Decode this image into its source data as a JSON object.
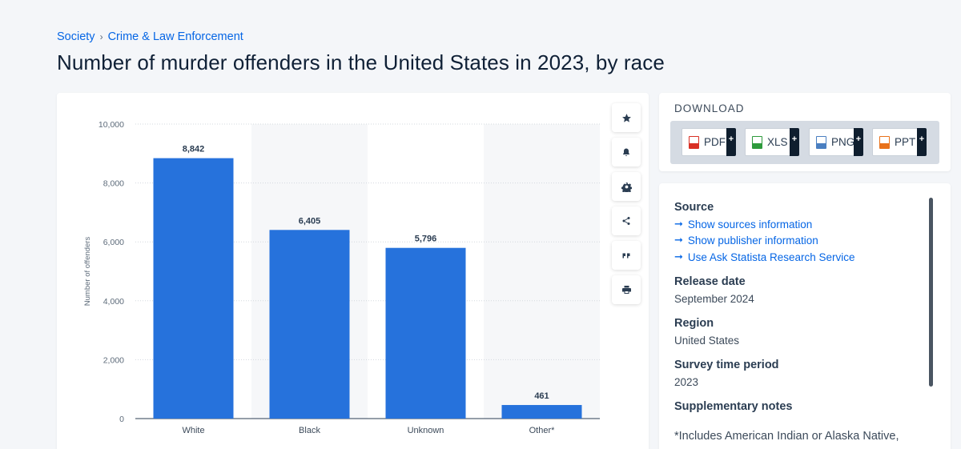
{
  "breadcrumb": {
    "items": [
      "Society",
      "Crime & Law Enforcement"
    ],
    "separator": "›"
  },
  "title": "Number of murder offenders in the United States in 2023, by race",
  "toolbar": {
    "buttons": [
      {
        "name": "favorite-button",
        "icon": "star-icon",
        "glyph": "★"
      },
      {
        "name": "notification-button",
        "icon": "bell-icon",
        "glyph": "🔔"
      },
      {
        "name": "settings-button",
        "icon": "gear-icon",
        "glyph": "⚙"
      },
      {
        "name": "share-button",
        "icon": "share-icon",
        "glyph": "share"
      },
      {
        "name": "cite-button",
        "icon": "quote-icon",
        "glyph": "❝"
      },
      {
        "name": "print-button",
        "icon": "printer-icon",
        "glyph": "print"
      }
    ]
  },
  "download": {
    "title": "DOWNLOAD",
    "formats": [
      {
        "label": "PDF",
        "color": "#d93025"
      },
      {
        "label": "XLS",
        "color": "#2e9a3c"
      },
      {
        "label": "PNG",
        "color": "#4a7fc1"
      },
      {
        "label": "PPT",
        "color": "#e8711a"
      }
    ],
    "plus": "+"
  },
  "info": {
    "source_heading": "Source",
    "links": [
      "Show sources information",
      "Show publisher information",
      "Use Ask Statista Research Service"
    ],
    "release_heading": "Release date",
    "release_value": "September 2024",
    "region_heading": "Region",
    "region_value": "United States",
    "period_heading": "Survey time period",
    "period_value": "2023",
    "notes_heading": "Supplementary notes",
    "notes_value": "*Includes American Indian or Alaska Native,"
  },
  "chart_data": {
    "type": "bar",
    "categories": [
      "White",
      "Black",
      "Unknown",
      "Other*"
    ],
    "values": [
      8842,
      6405,
      5796,
      461
    ],
    "value_labels": [
      "8,842",
      "6,405",
      "5,796",
      "461"
    ],
    "ylabel": "Number of offenders",
    "ylim": [
      0,
      10000
    ],
    "yticks": [
      0,
      2000,
      4000,
      6000,
      8000,
      10000
    ],
    "ytick_labels": [
      "0",
      "2,000",
      "4,000",
      "6,000",
      "8,000",
      "10,000"
    ],
    "bar_color": "#2672dc",
    "grid": true
  }
}
